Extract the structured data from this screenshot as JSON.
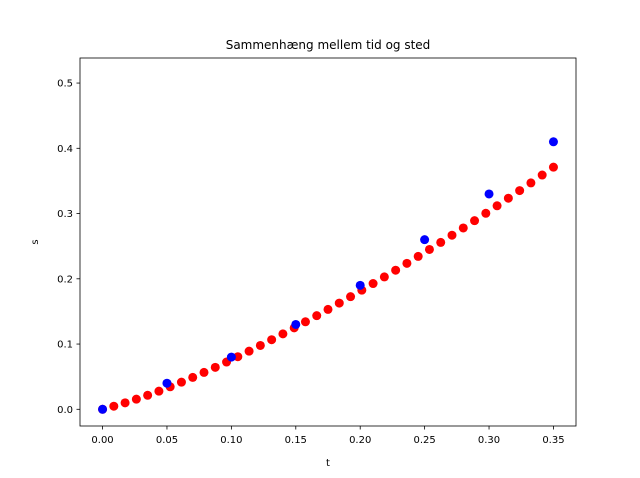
{
  "chart_data": {
    "type": "scatter",
    "title": "Sammenhæng mellem tid og sted",
    "xlabel": "t",
    "ylabel": "s",
    "xlim": [
      -0.0175,
      0.3675
    ],
    "ylim": [
      -0.0256,
      0.5384
    ],
    "xticks": [
      0.0,
      0.05,
      0.1,
      0.15,
      0.2,
      0.25,
      0.3,
      0.35
    ],
    "xtick_labels": [
      "0.00",
      "0.05",
      "0.10",
      "0.15",
      "0.20",
      "0.25",
      "0.30",
      "0.35"
    ],
    "yticks": [
      0.0,
      0.1,
      0.2,
      0.3,
      0.4,
      0.5
    ],
    "ytick_labels": [
      "0.0",
      "0.1",
      "0.2",
      "0.3",
      "0.4",
      "0.5"
    ],
    "grid": false,
    "series": [
      {
        "color": "#ff0000",
        "marker": "circle",
        "x": [
          0.0,
          0.00875,
          0.0175,
          0.02625,
          0.035,
          0.04375,
          0.0525,
          0.06125,
          0.07,
          0.07875,
          0.0875,
          0.09625,
          0.105,
          0.11375,
          0.1225,
          0.13125,
          0.14,
          0.14875,
          0.1575,
          0.16625,
          0.175,
          0.18375,
          0.1925,
          0.20125,
          0.21,
          0.21875,
          0.2275,
          0.23625,
          0.245,
          0.25375,
          0.2625,
          0.27125,
          0.28,
          0.28875,
          0.2975,
          0.30625,
          0.315,
          0.32375,
          0.3325,
          0.34125,
          0.35
        ],
        "y": [
          0.0,
          0.0047,
          0.0099,
          0.0155,
          0.0215,
          0.0278,
          0.0345,
          0.0416,
          0.0489,
          0.0565,
          0.0643,
          0.0724,
          0.0806,
          0.0891,
          0.0978,
          0.1066,
          0.1156,
          0.1248,
          0.1341,
          0.1435,
          0.1531,
          0.1628,
          0.1726,
          0.1826,
          0.1927,
          0.2029,
          0.2132,
          0.2237,
          0.2343,
          0.245,
          0.2558,
          0.2668,
          0.2779,
          0.2891,
          0.3004,
          0.3119,
          0.3235,
          0.3352,
          0.347,
          0.359,
          0.3711
        ]
      },
      {
        "color": "#0000ff",
        "marker": "circle",
        "x": [
          0.0,
          0.05,
          0.1,
          0.15,
          0.2,
          0.25,
          0.3,
          0.35
        ],
        "y": [
          0.0,
          0.04,
          0.08,
          0.13,
          0.19,
          0.26,
          0.33,
          0.41
        ]
      }
    ]
  }
}
